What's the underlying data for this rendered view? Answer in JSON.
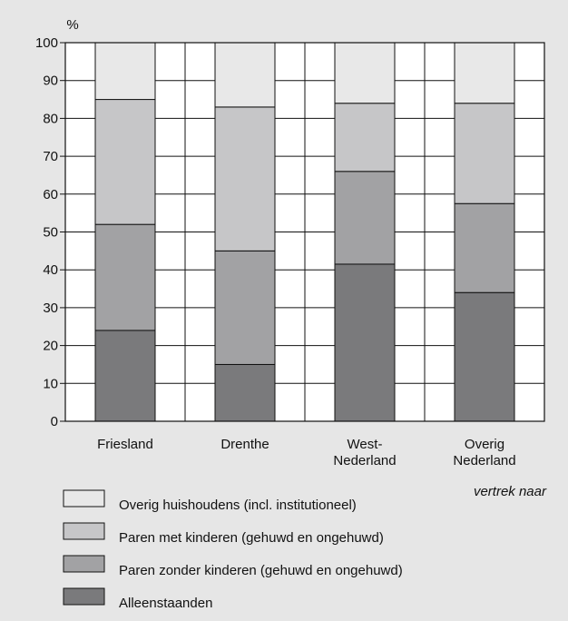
{
  "chart_data": {
    "type": "bar",
    "stacked": true,
    "ylabel": "%",
    "xlabel": "vertrek naar",
    "ylim": [
      0,
      100
    ],
    "yticks": [
      0,
      10,
      20,
      30,
      40,
      50,
      60,
      70,
      80,
      90,
      100
    ],
    "grid": true,
    "categories": [
      [
        "Friesland"
      ],
      [
        "Drenthe"
      ],
      [
        "West-",
        "Nederland"
      ],
      [
        "Overig",
        "Nederland"
      ]
    ],
    "series": [
      {
        "name": "Alleenstaanden",
        "color": "#7a7a7c",
        "values": [
          24,
          15,
          41.5,
          34
        ]
      },
      {
        "name": "Paren zonder kinderen (gehuwd en ongehuwd)",
        "color": "#a2a2a4",
        "values": [
          28,
          30,
          24.5,
          23.5
        ]
      },
      {
        "name": "Paren met kinderen (gehuwd en ongehuwd)",
        "color": "#c6c6c8",
        "values": [
          33,
          38,
          18,
          26.5
        ]
      },
      {
        "name": "Overig huishoudens (incl. institutioneel)",
        "color": "#e8e8e8",
        "values": [
          15,
          17,
          16,
          16
        ]
      }
    ],
    "legend_order": [
      3,
      2,
      1,
      0
    ],
    "legend_position": "bottom"
  }
}
